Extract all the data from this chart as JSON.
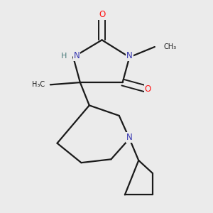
{
  "background_color": "#ebebeb",
  "bond_color": "#1a1a1a",
  "atom_colors": {
    "N": "#3535b0",
    "O": "#ff1515",
    "H": "#4a7a7a",
    "C": "#1a1a1a"
  },
  "figsize": [
    3.0,
    3.0
  ],
  "dpi": 100
}
